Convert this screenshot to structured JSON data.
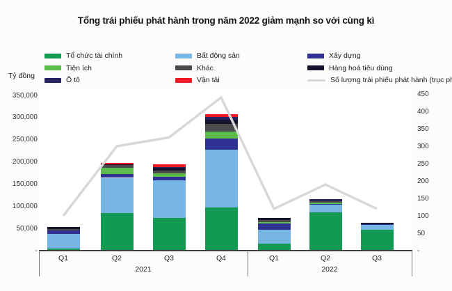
{
  "title": "Tổng trái phiếu phát hành trong năm 2022 giảm mạnh so với cùng kì",
  "unit_label": "Tỷ đồng",
  "legend": {
    "columns": [
      {
        "items": [
          {
            "label": "Tổ chức tài chính",
            "color": "#129a52",
            "type": "rect"
          },
          {
            "label": "Tiện ích",
            "color": "#5cbd4d",
            "type": "rect"
          },
          {
            "label": "Ô tô",
            "color": "#27225f",
            "type": "rect"
          }
        ]
      },
      {
        "items": [
          {
            "label": "Bất động sản",
            "color": "#77b5e5",
            "type": "rect"
          },
          {
            "label": "Khác",
            "color": "#4a4a4c",
            "type": "rect"
          },
          {
            "label": "Vận tải",
            "color": "#ed1c24",
            "type": "rect"
          }
        ]
      },
      {
        "items": [
          {
            "label": "Xây dựng",
            "color": "#2e3192",
            "type": "rect"
          },
          {
            "label": "Hàng hoá tiêu dùng",
            "color": "#15142d",
            "type": "rect"
          },
          {
            "label": "Số lượng trái phiếu phát hành (trục phải)",
            "color": "#d8d8d8",
            "type": "line"
          }
        ]
      }
    ]
  },
  "chart_data": {
    "type": "stacked-bar+line",
    "title": "Tổng trái phiếu phát hành trong năm 2022 giảm mạnh so với cùng kì",
    "unit": "Tỷ đồng",
    "categories": [
      "Q1",
      "Q2",
      "Q3",
      "Q4",
      "Q1",
      "Q2",
      "Q3"
    ],
    "groups": [
      {
        "label": "2021",
        "from": 0,
        "to": 3
      },
      {
        "label": "2022",
        "from": 4,
        "to": 6
      }
    ],
    "series": [
      {
        "name": "Tổ chức tài chính",
        "color": "#129a52",
        "values": [
          5000,
          84000,
          74000,
          98000,
          16000,
          86000,
          47000
        ]
      },
      {
        "name": "Bất động sản",
        "color": "#77b5e5",
        "values": [
          33000,
          80000,
          85000,
          129000,
          31000,
          17000,
          11000
        ]
      },
      {
        "name": "Xây dựng",
        "color": "#2e3192",
        "values": [
          8000,
          9000,
          8000,
          25000,
          14000,
          2000,
          2000
        ]
      },
      {
        "name": "Tiện ích",
        "color": "#5cbd4d",
        "values": [
          0,
          14000,
          7000,
          16000,
          3000,
          4000,
          0
        ]
      },
      {
        "name": "Khác",
        "color": "#4a4a4c",
        "values": [
          3000,
          6000,
          6000,
          17000,
          5000,
          2000,
          0
        ]
      },
      {
        "name": "Hàng hoá tiêu dùng",
        "color": "#15142d",
        "values": [
          4000,
          2000,
          6000,
          10000,
          4000,
          0,
          2000
        ]
      },
      {
        "name": "Ô tô",
        "color": "#27225f",
        "values": [
          0,
          0,
          2000,
          6000,
          0,
          5000,
          0
        ]
      },
      {
        "name": "Vận tải",
        "color": "#ed1c24",
        "values": [
          0,
          3000,
          6000,
          7000,
          0,
          0,
          0
        ]
      }
    ],
    "line": {
      "name": "Số lượng trái phiếu phát hành (trục phải)",
      "color": "#d8d8d8",
      "values": [
        100,
        300,
        325,
        440,
        120,
        190,
        120
      ]
    },
    "left_axis": {
      "label": "Tỷ đồng",
      "ticks": [
        "350,000",
        "300,000",
        "250,000",
        "200,000",
        "150,000",
        "100,000",
        "50,000",
        "-"
      ],
      "max": 350000,
      "step": 50000
    },
    "right_axis": {
      "ticks": [
        "450",
        "400",
        "350",
        "300",
        "250",
        "200",
        "150",
        "100",
        "50",
        "-"
      ],
      "max": 450,
      "step": 50
    }
  }
}
